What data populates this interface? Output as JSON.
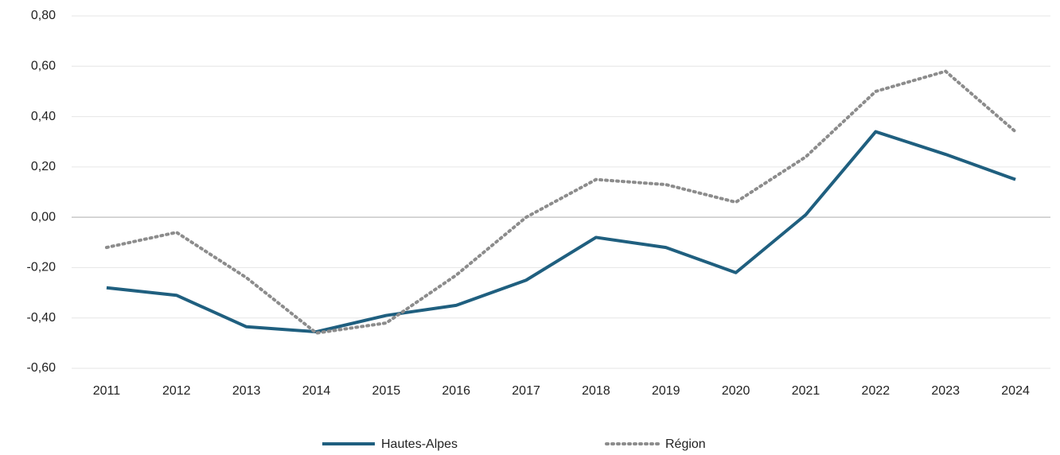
{
  "chart_data": {
    "type": "line",
    "categories": [
      "2011",
      "2012",
      "2013",
      "2014",
      "2015",
      "2016",
      "2017",
      "2018",
      "2019",
      "2020",
      "2021",
      "2022",
      "2023",
      "2024"
    ],
    "series": [
      {
        "name": "Hautes-Alpes",
        "color": "#1f5f7f",
        "style": "solid",
        "values": [
          -0.28,
          -0.31,
          -0.435,
          -0.455,
          -0.39,
          -0.35,
          -0.25,
          -0.08,
          -0.12,
          -0.22,
          0.01,
          0.34,
          0.25,
          0.15
        ]
      },
      {
        "name": "Région",
        "color": "#8c8c8c",
        "style": "dotted",
        "values": [
          -0.12,
          -0.06,
          -0.24,
          -0.46,
          -0.42,
          -0.23,
          0.0,
          0.15,
          0.13,
          0.06,
          0.24,
          0.5,
          0.58,
          0.34
        ]
      }
    ],
    "ylim": [
      -0.6,
      0.8
    ],
    "yticks": [
      {
        "value": -0.6,
        "label": "-0,60"
      },
      {
        "value": -0.4,
        "label": "-0,40"
      },
      {
        "value": -0.2,
        "label": "-0,20"
      },
      {
        "value": 0,
        "label": "0,00"
      },
      {
        "value": 0.2,
        "label": "0,20"
      },
      {
        "value": 0.4,
        "label": "0,40"
      },
      {
        "value": 0.6,
        "label": "0,60"
      },
      {
        "value": 0.8,
        "label": "0,80"
      }
    ],
    "grid": true,
    "legend": "bottom"
  }
}
